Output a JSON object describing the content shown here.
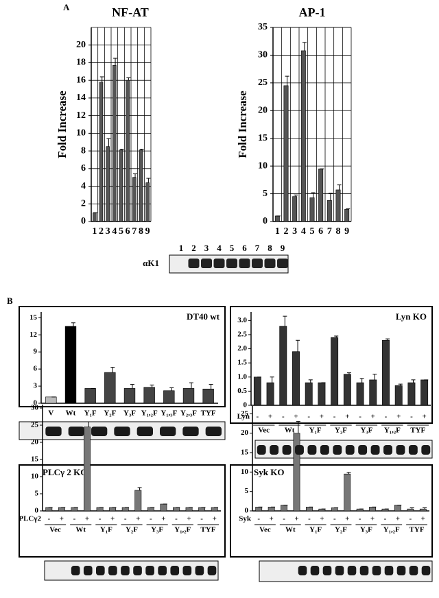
{
  "panel_labels": [
    "A",
    "B"
  ],
  "chart_data": [
    {
      "type": "bar",
      "title": "NF-AT",
      "ylabel": "Fold Increase",
      "categories": [
        "1",
        "2",
        "3",
        "4",
        "5",
        "6",
        "7",
        "8",
        "9"
      ],
      "values": [
        1,
        15.8,
        8.5,
        17.7,
        8.1,
        16,
        5,
        8.1,
        4.4
      ],
      "errors": [
        0,
        0.6,
        0.9,
        0.8,
        0.1,
        0.3,
        0.4,
        0.1,
        0.5
      ],
      "color": "#555555",
      "ylim": [
        0,
        22
      ],
      "yticks": [
        0,
        2,
        4,
        6,
        8,
        10,
        12,
        14,
        16,
        18,
        20
      ],
      "grid": true,
      "blot_label": "αK1"
    },
    {
      "type": "bar",
      "title": "AP-1",
      "ylabel": "Fold Increase",
      "categories": [
        "1",
        "2",
        "3",
        "4",
        "5",
        "6",
        "7",
        "8",
        "9"
      ],
      "values": [
        1,
        24.5,
        4.5,
        30.8,
        4.3,
        9.5,
        3.8,
        5.7,
        2.2
      ],
      "errors": [
        0,
        1.7,
        0.3,
        1.5,
        0.9,
        0,
        1.3,
        0.9,
        0.1
      ],
      "color": "#555555",
      "ylim": [
        0,
        35
      ],
      "yticks": [
        0,
        5,
        10,
        15,
        20,
        25,
        30,
        35
      ],
      "grid": true
    },
    {
      "type": "bar",
      "title": "DT40 wt",
      "categories": [
        "V",
        "Wt",
        "Y₁F",
        "Y₂F",
        "Y₃F",
        "Y₁,₂F",
        "Y₁,₃F",
        "Y₂,₃F",
        "TYF"
      ],
      "values": [
        1.1,
        13.5,
        2.6,
        5.4,
        2.6,
        2.8,
        2.2,
        2.6,
        2.5
      ],
      "errors": [
        0,
        0.6,
        0,
        0.9,
        0.7,
        0.4,
        0.5,
        1,
        0.8
      ],
      "colors": [
        "#bbbbbb",
        "#000000",
        "#444444",
        "#444444",
        "#444444",
        "#444444",
        "#444444",
        "#444444",
        "#444444"
      ],
      "ylim": [
        0,
        16
      ],
      "yticks": [
        0,
        3,
        6,
        9,
        12,
        15
      ],
      "grid": false
    },
    {
      "type": "bar",
      "title": "Lyn KO",
      "row_label": "Lyn",
      "categories": [
        "-",
        "+",
        "-",
        "+",
        "-",
        "+",
        "-",
        "+",
        "-",
        "+",
        "-",
        "+",
        "-",
        "+"
      ],
      "groups": [
        "Vec",
        "Wt",
        "Y₁F",
        "Y₂F",
        "Y₃F",
        "Y₁,₂F",
        "TYF"
      ],
      "values": [
        1.0,
        0.8,
        2.8,
        1.9,
        0.8,
        0.8,
        2.4,
        1.1,
        0.8,
        0.9,
        2.3,
        0.7,
        0.8,
        0.9
      ],
      "errors": [
        0,
        0.2,
        0.35,
        0.4,
        0.1,
        0,
        0.05,
        0.05,
        0.15,
        0.2,
        0.05,
        0.05,
        0.1,
        0
      ],
      "color": "#333333",
      "ylim": [
        0,
        3.3
      ],
      "yticks": [
        0,
        {
          "value": 0.5,
          "label": "0.5"
        },
        {
          "value": 1,
          "label": "1.0"
        },
        {
          "value": 1.5,
          "label": "1.5"
        },
        {
          "value": 2,
          "label": "2.0"
        },
        {
          "value": 2.5,
          "label": "2.5"
        },
        {
          "value": 3,
          "label": "3.0"
        }
      ],
      "grid": false
    },
    {
      "type": "bar",
      "title": "PLCγ 2 KO",
      "row_label": "PLCγ2",
      "categories": [
        "-",
        "+",
        "-",
        "+",
        "-",
        "+",
        "-",
        "+",
        "-",
        "+",
        "-",
        "+",
        "-",
        "+"
      ],
      "groups": [
        "Vec",
        "Wt",
        "Y₁F",
        "Y₂F",
        "Y₃F",
        "Y₁,₂F",
        "TYF"
      ],
      "values": [
        1,
        1,
        1,
        24.5,
        1,
        1,
        1,
        6,
        1,
        2,
        1,
        1,
        1,
        1
      ],
      "errors": [
        0,
        0,
        0,
        1.5,
        0,
        0,
        0,
        0.8,
        0,
        0,
        0,
        0,
        0,
        0
      ],
      "color": "#777777",
      "ylim": [
        0,
        31
      ],
      "yticks": [
        0,
        5,
        10,
        15,
        20,
        25,
        30
      ],
      "grid": false
    },
    {
      "type": "bar",
      "title": "Syk KO",
      "row_label": "Syk",
      "categories": [
        "-",
        "+",
        "-",
        "+",
        "-",
        "+",
        "-",
        "+",
        "-",
        "+",
        "-",
        "+",
        "-",
        "+"
      ],
      "groups": [
        "Vec",
        "Wt",
        "Y₁F",
        "Y₂F",
        "Y₃F",
        "Y₁,₂F",
        "TYF"
      ],
      "values": [
        1,
        1,
        1.5,
        20,
        1,
        0.5,
        0.8,
        9.5,
        0.5,
        1,
        0.5,
        1.5,
        0.5,
        0.5
      ],
      "errors": [
        0,
        0,
        0,
        3,
        0,
        0,
        0,
        0.4,
        0,
        0,
        0,
        0,
        0.3,
        0.3
      ],
      "color": "#777777",
      "ylim": [
        0,
        27
      ],
      "yticks": [
        0,
        5,
        10,
        15,
        20,
        25
      ],
      "grid": false
    }
  ]
}
